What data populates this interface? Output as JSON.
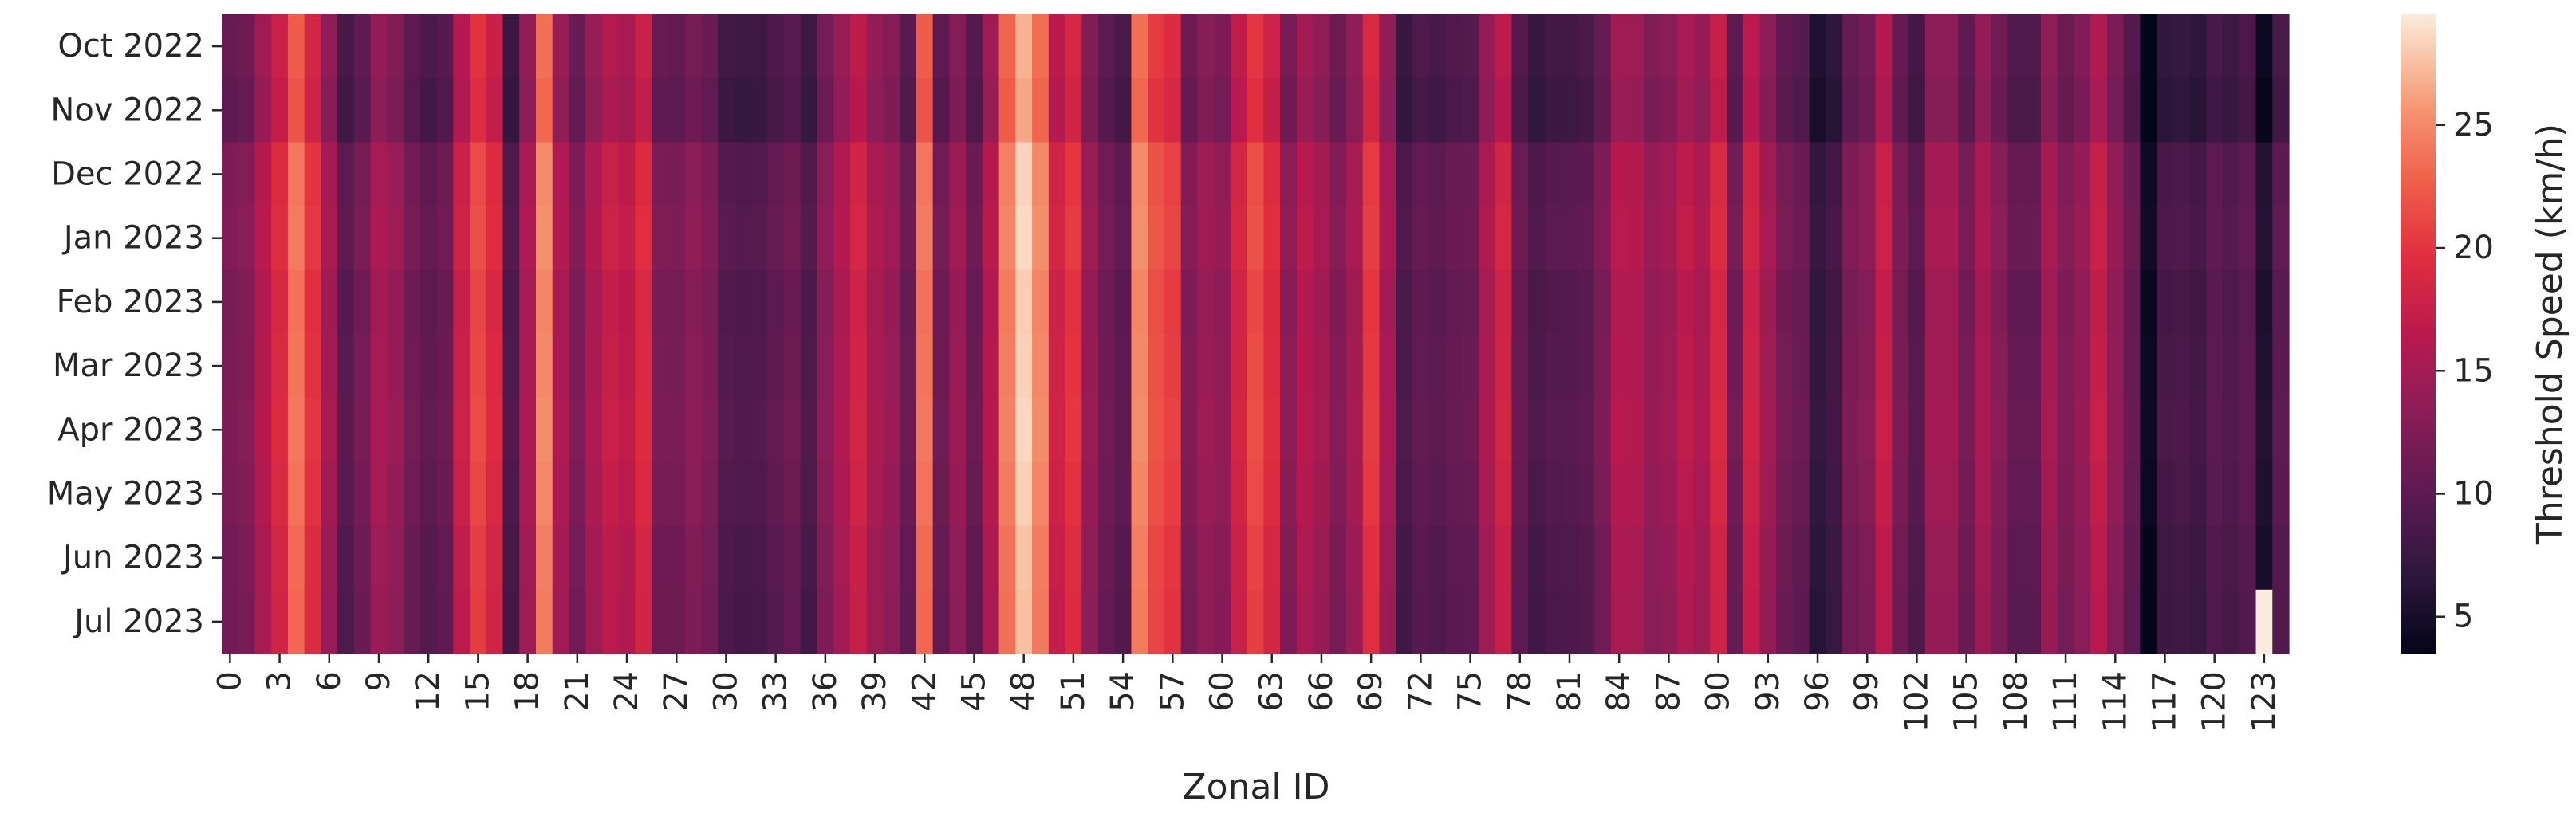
{
  "chart_data": {
    "type": "heatmap",
    "title": "",
    "xlabel": "Zonal ID",
    "ylabel": "",
    "rows": [
      "Oct 2022",
      "Nov 2022",
      "Dec 2022",
      "Jan 2023",
      "Feb 2023",
      "Mar 2023",
      "Apr 2023",
      "May 2023",
      "Jun 2023",
      "Jul 2023"
    ],
    "x_ticks": [
      "0",
      "3",
      "6",
      "9",
      "12",
      "15",
      "18",
      "21",
      "24",
      "27",
      "30",
      "33",
      "36",
      "39",
      "42",
      "45",
      "48",
      "51",
      "54",
      "57",
      "60",
      "63",
      "66",
      "69",
      "72",
      "75",
      "78",
      "81",
      "84",
      "87",
      "90",
      "93",
      "96",
      "99",
      "102",
      "105",
      "108",
      "111",
      "114",
      "117",
      "120",
      "123"
    ],
    "zone_profile": [
      11.8,
      12.3,
      15.6,
      18.6,
      23.5,
      19.5,
      14.5,
      9.4,
      11.3,
      14.8,
      13.7,
      11.1,
      9.8,
      10.6,
      17.2,
      20.9,
      18.6,
      8.6,
      14.9,
      24.6,
      15.2,
      11.9,
      15.2,
      17.0,
      16.3,
      18.7,
      11.7,
      11.5,
      12.8,
      11.9,
      9.1,
      8.7,
      8.9,
      9.9,
      10.8,
      8.7,
      12.7,
      15.3,
      17.8,
      14.9,
      13.8,
      10.7,
      23.5,
      10.9,
      13.8,
      10.5,
      15.7,
      24.0,
      27.9,
      24.5,
      17.6,
      19.6,
      13.7,
      10.9,
      9.6,
      24.6,
      21.4,
      20.3,
      12.1,
      14.0,
      13.2,
      17.9,
      21.1,
      18.8,
      12.7,
      15.9,
      14.5,
      12.2,
      14.6,
      19.9,
      14.8,
      8.4,
      10.0,
      9.5,
      10.2,
      10.5,
      14.9,
      17.8,
      10.4,
      8.4,
      9.1,
      9.2,
      9.6,
      11.8,
      15.8,
      15.5,
      13.5,
      14.1,
      16.3,
      15.1,
      18.4,
      11.1,
      17.6,
      14.3,
      11.3,
      10.5,
      6.6,
      7.7,
      11.8,
      12.6,
      17.0,
      11.6,
      9.2,
      14.4,
      14.4,
      11.3,
      14.8,
      12.5,
      10.1,
      10.1,
      14.5,
      12.1,
      13.5,
      16.9,
      13.2,
      10.4,
      3.8,
      8.0,
      8.3,
      7.7,
      9.5,
      8.8,
      9.7,
      5.2,
      9.6
    ],
    "row_offsets": [
      -1.0,
      -1.5,
      0.5,
      0.8,
      0.2,
      0.4,
      0.6,
      0.3,
      -0.2,
      -0.4
    ],
    "zone_123_jul_2023": 29.5,
    "colorbar": {
      "label": "Threshold Speed (km/h)",
      "min": 3.5,
      "max": 29.5,
      "ticks": [
        "5",
        "10",
        "15",
        "20",
        "25"
      ],
      "colormap": "rocket",
      "position": "right"
    },
    "grid": false,
    "legend": "none"
  }
}
